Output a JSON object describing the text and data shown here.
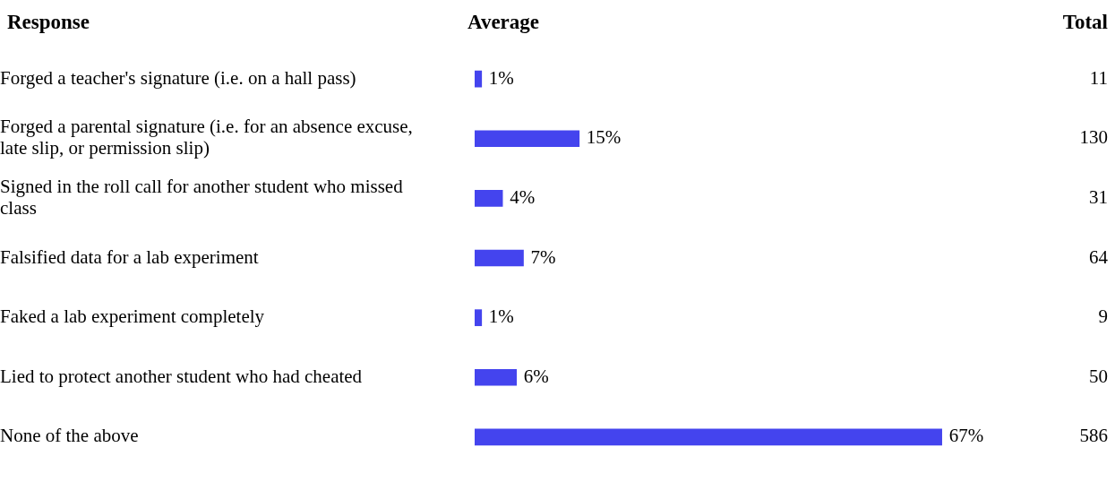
{
  "chart_data": {
    "type": "bar",
    "orientation": "horizontal",
    "ylabel": "Response",
    "xlabel": "Average",
    "annotations": [
      "Total",
      "11",
      "130",
      "31",
      "64",
      "9",
      "50",
      "586"
    ],
    "categories": [
      "Forged a teacher's signature (i.e. on a hall pass)",
      "Forged a parental signature (i.e. for an absence excuse, late slip, or permission slip)",
      "Signed in the roll call for another student who missed class",
      "Falsified data for a lab experiment",
      "Faked a lab experiment completely",
      "Lied to protect another student who had cheated",
      "None of the above"
    ],
    "values": [
      1,
      15,
      4,
      7,
      1,
      6,
      67
    ],
    "value_labels": [
      "1%",
      "15%",
      "4%",
      "7%",
      "1%",
      "6%",
      "67%"
    ],
    "color": "#4444ee"
  }
}
